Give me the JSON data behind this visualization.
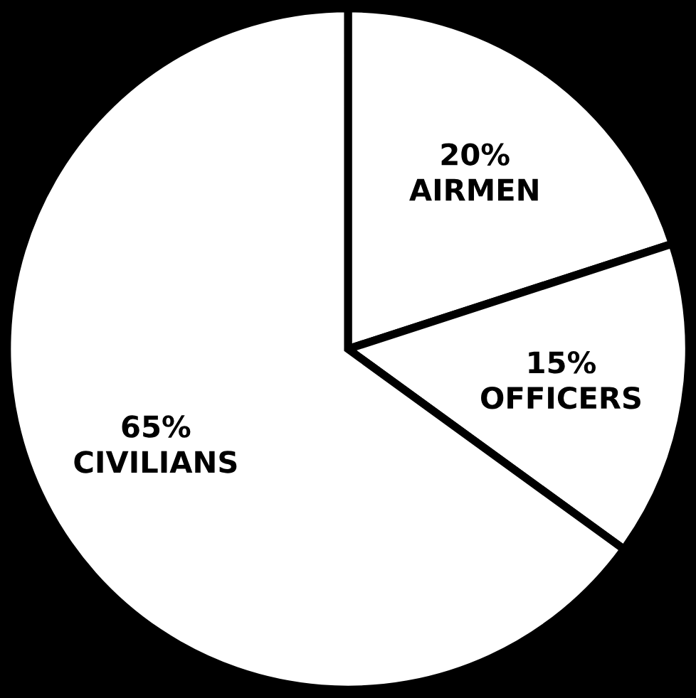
{
  "chart_data": {
    "type": "pie",
    "categories": [
      "AIRMEN",
      "OFFICERS",
      "CIVILIANS"
    ],
    "values": [
      20,
      15,
      65
    ],
    "value_labels": [
      "20%",
      "15%",
      "65%"
    ],
    "colors": [
      "#ffffff",
      "#ffffff",
      "#ffffff"
    ]
  }
}
